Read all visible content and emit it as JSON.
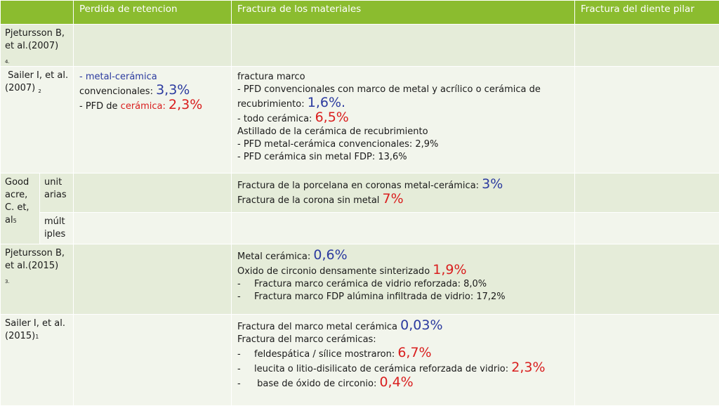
{
  "header": {
    "col_retention": "Perdida de retencion",
    "col_materials": "Fractura de los materiales",
    "col_abutment": "Fractura del diente pilar"
  },
  "rows": {
    "pjetursson2007": {
      "author": "Pjetursson B, et al.(2007)",
      "ref": "4."
    },
    "sailer2007": {
      "author": "Sailer I, et al.(2007)",
      "ref": "2",
      "retention": {
        "l1": "- metal-cerámica",
        "l2a": "convencionales: ",
        "l2v": "3,3%",
        "l3a": "- PFD de ",
        "l3b": "cerámica: ",
        "l3v": "2,3%"
      },
      "materials": {
        "l1": "fractura marco",
        "l2": "- PFD convencionales con marco de metal y acrílico o cerámica de",
        "l3a": "recubrimiento: ",
        "l3v": "1,6%.",
        "l4a": "- todo cerámica: ",
        "l4v": "6,5%",
        "l5": "Astillado de la cerámica de recubrimiento",
        "l6": "- PFD metal-cerámica convencionales: 2,9%",
        "l7": "- PFD cerámica sin metal FDP: 13,6%"
      }
    },
    "goodacre": {
      "author_l1": "Good",
      "author_l2": "acre,",
      "author_l3": "C. et,",
      "author_l4": "al",
      "ref": "5",
      "unit_l1": "unit",
      "unit_l2": "arias",
      "mult_l1": "múlt",
      "mult_l2": "iples",
      "materials": {
        "l1a": "Fractura de la porcelana en coronas metal-cerámica: ",
        "l1v": "3%",
        "l2a": "Fractura de la corona sin metal ",
        "l2v": "7%"
      }
    },
    "pjetursson2015": {
      "author": "Pjetursson B, et al.(2015)",
      "ref": "3.",
      "materials": {
        "l1a": "Metal cerámica: ",
        "l1v": "0,6%",
        "l2a": "Oxido de circonio densamente sinterizado ",
        "l2v": "1,9%",
        "l3": "Fractura marco cerámica de vidrio reforzada: 8,0%",
        "l4": "Fractura marco FDP alúmina infiltrada de vidrio: 17,2%"
      }
    },
    "sailer2015": {
      "author": "Sailer I, et al.(2015)",
      "ref": "1",
      "materials": {
        "l1a": "Fractura del marco metal cerámica ",
        "l1v": "0,03%",
        "l2": "Fractura del marco cerámicas:",
        "l3a": "feldespática / sílice mostraron: ",
        "l3v": "6,7%",
        "l4a": "leucita o litio-disilicato de cerámica reforzada de vidrio: ",
        "l4v": "2,3%",
        "l5a": " base de óxido de circonio: ",
        "l5v": "0,4%"
      }
    }
  },
  "dash": "-",
  "colors": {
    "header_bg": "#8bbc2f",
    "row_dark": "#e5ecd9",
    "row_light": "#f2f5ec",
    "blue": "#2b3a9f",
    "red": "#d91e1e"
  }
}
